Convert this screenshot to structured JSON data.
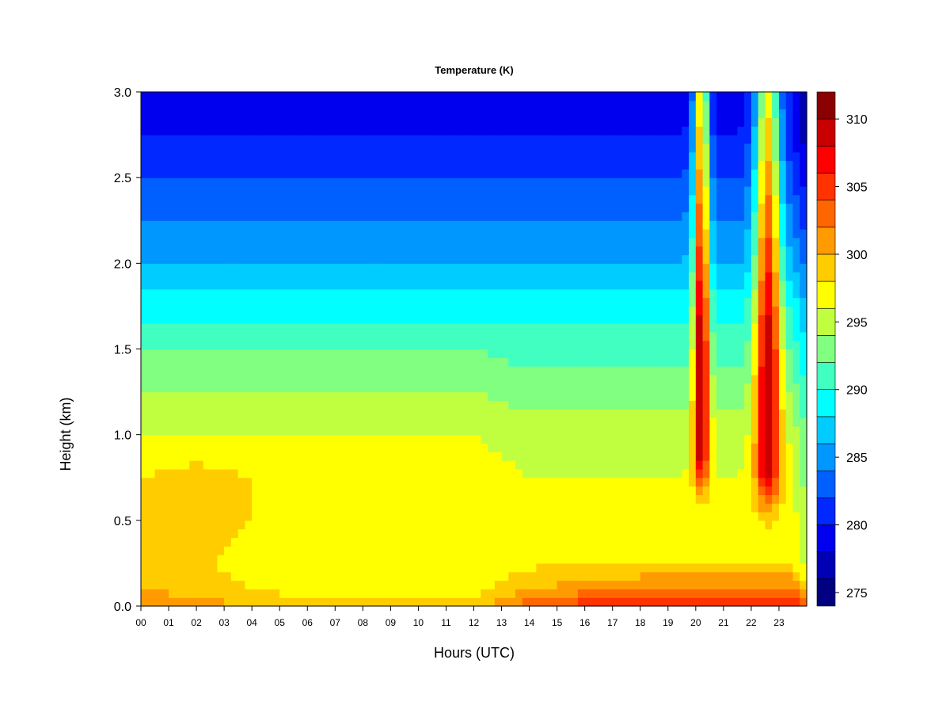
{
  "chart_data": {
    "type": "heatmap",
    "title": "Temperature (K)",
    "xlabel": "Hours (UTC)",
    "ylabel": "Height (km)",
    "xlim": [
      0,
      24
    ],
    "ylim": [
      0.0,
      3.0
    ],
    "x_ticks": [
      "00",
      "01",
      "02",
      "03",
      "04",
      "05",
      "06",
      "07",
      "08",
      "09",
      "10",
      "11",
      "12",
      "13",
      "14",
      "15",
      "16",
      "17",
      "18",
      "19",
      "20",
      "21",
      "22",
      "23"
    ],
    "y_ticks": [
      "0.0",
      "0.5",
      "1.0",
      "1.5",
      "2.0",
      "2.5",
      "3.0"
    ],
    "colorbar": {
      "label": "",
      "min": 274,
      "max": 312,
      "ticks": [
        "275",
        "280",
        "285",
        "290",
        "295",
        "300",
        "305",
        "310"
      ],
      "colors": [
        "#000080",
        "#0000b4",
        "#0000ee",
        "#0028ff",
        "#0060ff",
        "#0098ff",
        "#00ccff",
        "#00ffff",
        "#40ffc0",
        "#80ff80",
        "#c0ff40",
        "#ffff00",
        "#ffcc00",
        "#ff9a00",
        "#ff6600",
        "#ff3200",
        "#ff0000",
        "#c80000",
        "#8b0000"
      ],
      "level_step": 2
    },
    "profile_heights_km": [
      0.0,
      0.1,
      0.25,
      0.5,
      0.75,
      1.0,
      1.25,
      1.5,
      1.75,
      2.0,
      2.25,
      2.5,
      2.75,
      3.0
    ],
    "profiles": [
      {
        "hour": 0.0,
        "temps_K": [
          302,
          300,
          299,
          298,
          298,
          296,
          294,
          292,
          289,
          286,
          284,
          282,
          280,
          279
        ]
      },
      {
        "hour": 2.0,
        "temps_K": [
          301,
          299,
          298.5,
          299.5,
          299,
          296,
          294,
          292,
          289,
          286,
          284,
          282,
          280,
          279
        ]
      },
      {
        "hour": 4.0,
        "temps_K": [
          300,
          298,
          297,
          298,
          298,
          296,
          294,
          292,
          289,
          286,
          284,
          282,
          280,
          279
        ]
      },
      {
        "hour": 6.0,
        "temps_K": [
          298.5,
          297,
          296,
          297.5,
          298,
          296,
          294,
          292,
          289,
          286,
          284,
          282,
          280,
          279
        ]
      },
      {
        "hour": 8.0,
        "temps_K": [
          298.5,
          297,
          296,
          297.5,
          298,
          296,
          294,
          292,
          289,
          286,
          284,
          282,
          280,
          279
        ]
      },
      {
        "hour": 10.0,
        "temps_K": [
          298.5,
          297,
          296,
          297,
          297.5,
          296,
          294,
          292,
          289,
          286,
          284,
          282,
          280,
          279
        ]
      },
      {
        "hour": 12.0,
        "temps_K": [
          299,
          297,
          296,
          296.5,
          297,
          296,
          294,
          292,
          289,
          286,
          284,
          282,
          280,
          279
        ]
      },
      {
        "hour": 14.0,
        "temps_K": [
          303,
          300,
          297.5,
          296,
          296,
          295,
          293,
          291,
          289,
          286,
          284,
          282,
          280,
          279
        ]
      },
      {
        "hour": 16.0,
        "temps_K": [
          305.5,
          301,
          298,
          296.5,
          296,
          295,
          293,
          291,
          289,
          286,
          284,
          282,
          280,
          279
        ]
      },
      {
        "hour": 18.0,
        "temps_K": [
          306,
          302,
          298,
          297,
          296,
          295,
          293,
          291,
          289,
          286,
          284,
          282,
          280,
          279
        ]
      },
      {
        "hour": 19.7,
        "temps_K": [
          306,
          302,
          298,
          297,
          296,
          295,
          293,
          291,
          289,
          286,
          284,
          282,
          280,
          279
        ]
      }
    ],
    "plumes": [
      {
        "peak_hour": 20.2,
        "width_h": 0.28,
        "peak_K": 311,
        "z_low_km": 0.55,
        "z_high_km": 3.0
      },
      {
        "peak_hour": 22.6,
        "width_h": 0.45,
        "peak_K": 310,
        "z_low_km": 0.45,
        "z_high_km": 3.0
      }
    ]
  }
}
